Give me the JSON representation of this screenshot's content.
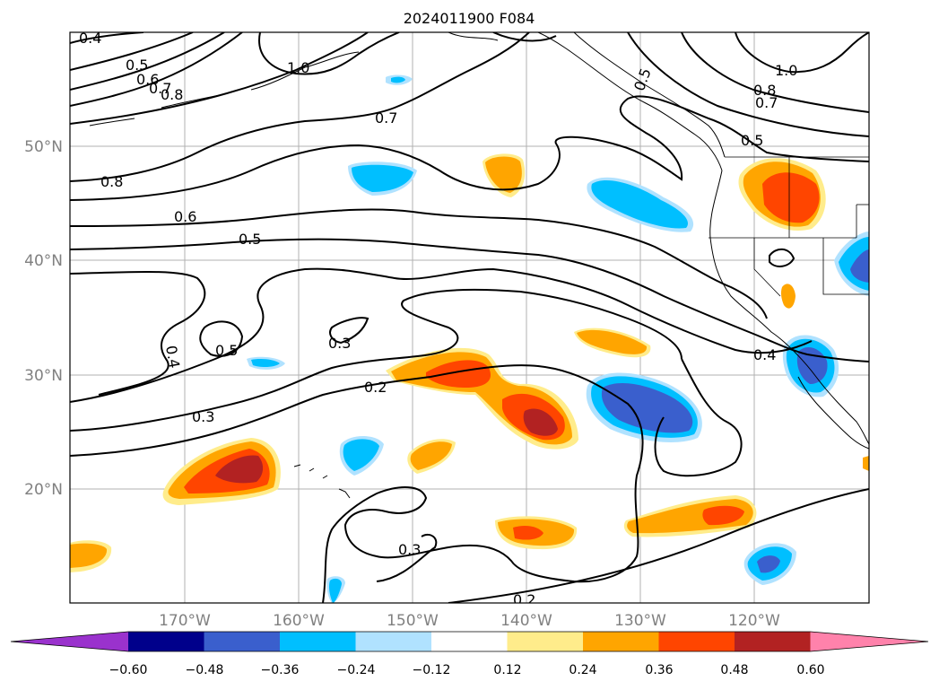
{
  "title": "2024011900 F084",
  "lat_labels": [
    "50°N",
    "40°N",
    "30°N",
    "20°N"
  ],
  "lon_labels": [
    "170°W",
    "160°W",
    "150°W",
    "140°W",
    "130°W",
    "120°W"
  ],
  "colorbar": {
    "ticks": [
      "−0.60",
      "−0.48",
      "−0.36",
      "−0.24",
      "−0.12",
      "0.12",
      "0.24",
      "0.36",
      "0.48",
      "0.60"
    ],
    "colors": [
      "#9a32cd",
      "#00008b",
      "#3a5fcd",
      "#00bfff",
      "#b0e2ff",
      "#ffffff",
      "#ffec8b",
      "#ffa500",
      "#ff4500",
      "#b22222",
      "#ff82ab"
    ]
  },
  "contour_labels": [
    "0.4",
    "0.5",
    "0.6",
    "0.7",
    "0.8",
    "1.0",
    "0.7",
    "0.8",
    "0.6",
    "0.5",
    "0.4",
    "0.5",
    "0.3",
    "0.3",
    "0.2",
    "0.3",
    "0.2",
    "1.0",
    "0.8",
    "0.7",
    "0.5",
    "0.5",
    "0.4"
  ]
}
